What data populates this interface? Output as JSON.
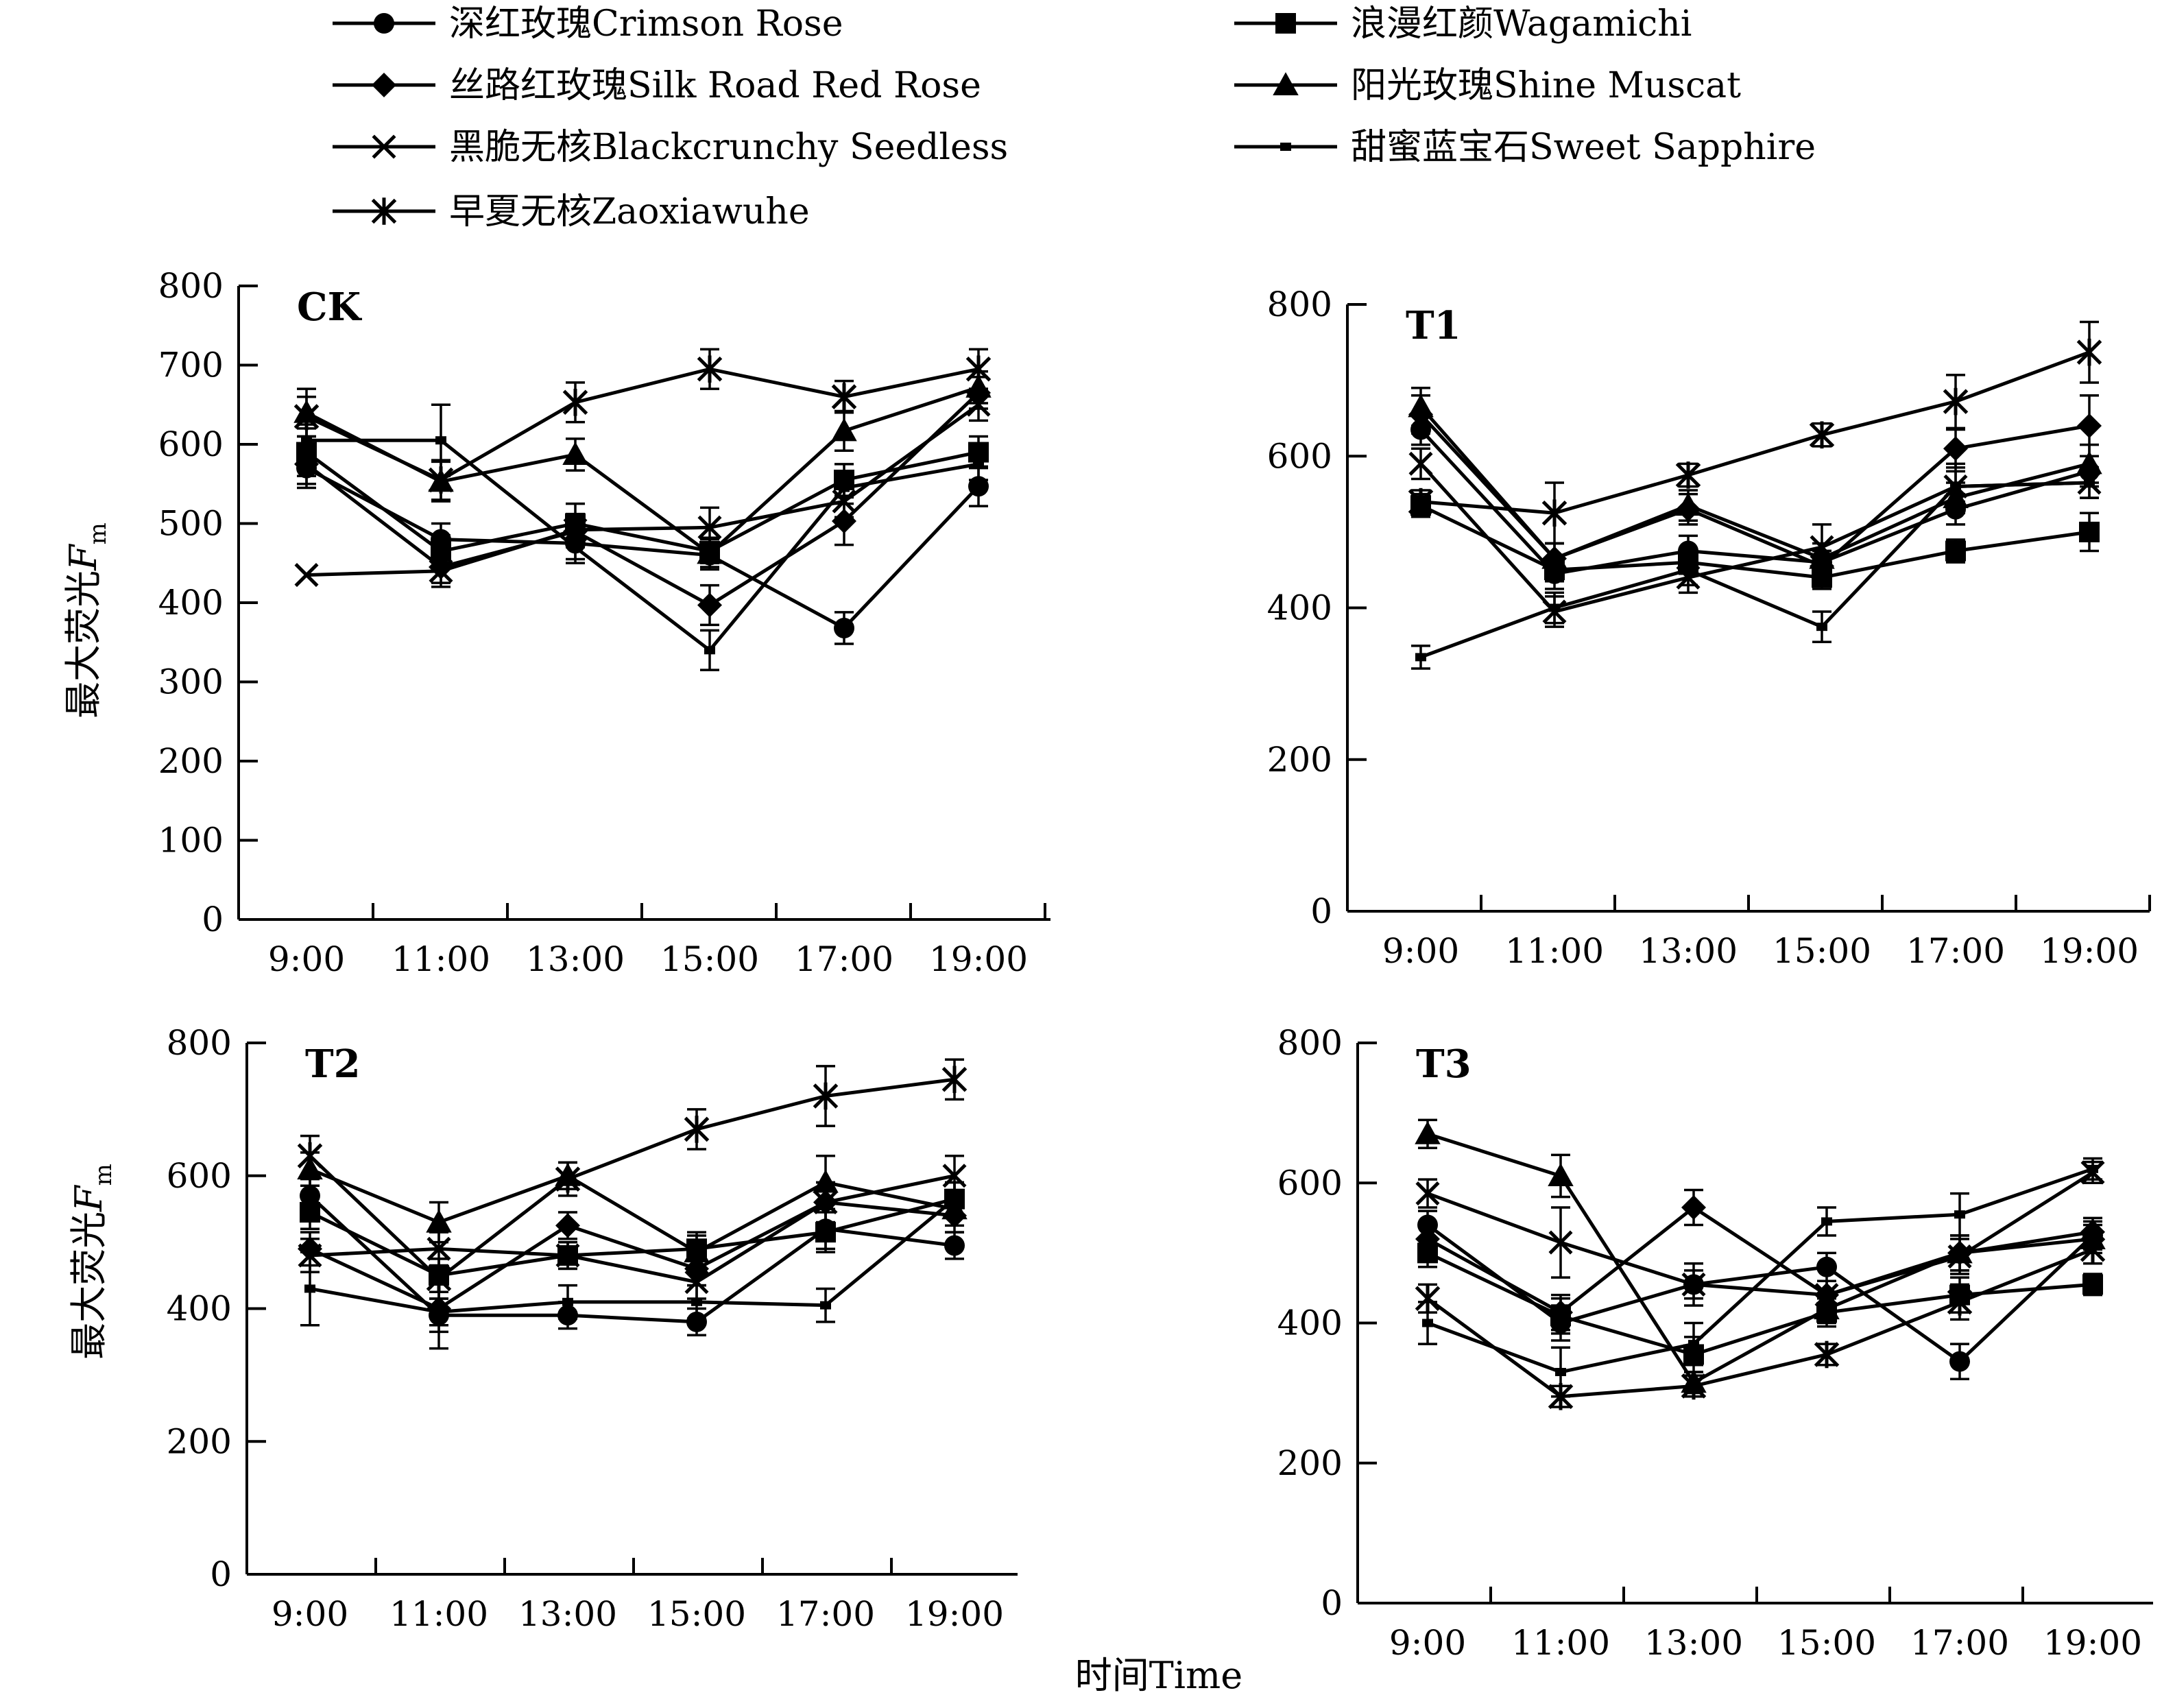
{
  "figure": {
    "ylabel_main": "最大荧光",
    "ylabel_var": "F",
    "ylabel_sub": "m",
    "xlabel": "时间Time"
  },
  "legend": [
    {
      "name": "深红玫瑰Crimson Rose",
      "marker": "circle"
    },
    {
      "name": "浪漫红颜Wagamichi",
      "marker": "square"
    },
    {
      "name": "丝路红玫瑰Silk Road Red Rose",
      "marker": "diamond"
    },
    {
      "name": "阳光玫瑰Shine Muscat",
      "marker": "triangle"
    },
    {
      "name": "黑脆无核Blackcrunchy Seedless",
      "marker": "x"
    },
    {
      "name": "甜蜜蓝宝石Sweet Sapphire",
      "marker": "dash"
    },
    {
      "name": "早夏无核Zaoxiawuhe",
      "marker": "star"
    }
  ],
  "chart_data": [
    {
      "type": "line",
      "title": "CK",
      "categories": [
        "9:00",
        "11:00",
        "13:00",
        "15:00",
        "17:00",
        "19:00"
      ],
      "ylim": [
        0,
        800
      ],
      "yticks": [
        0,
        100,
        200,
        300,
        400,
        500,
        600,
        700,
        800
      ],
      "series": [
        {
          "name": "深红玫瑰Crimson Rose",
          "values": [
            570,
            480,
            475,
            460,
            368,
            547
          ],
          "err": [
            25,
            20,
            20,
            15,
            20,
            25
          ]
        },
        {
          "name": "浪漫红颜Wagamichi",
          "values": [
            590,
            465,
            500,
            465,
            555,
            590
          ],
          "err": [
            30,
            20,
            25,
            15,
            20,
            20
          ]
        },
        {
          "name": "丝路红玫瑰Silk Road Red Rose",
          "values": [
            575,
            445,
            490,
            397,
            503,
            665
          ],
          "err": [
            25,
            20,
            20,
            25,
            30,
            20
          ]
        },
        {
          "name": "阳光玫瑰Shine Muscat",
          "values": [
            640,
            553,
            587,
            462,
            617,
            672
          ],
          "err": [
            30,
            25,
            20,
            20,
            25,
            20
          ]
        },
        {
          "name": "黑脆无核Blackcrunchy Seedless",
          "values": [
            435,
            440,
            492,
            495,
            528,
            650
          ],
          "err": [
            0,
            20,
            20,
            25,
            20,
            20
          ]
        },
        {
          "name": "甜蜜蓝宝石Sweet Sapphire",
          "values": [
            605,
            605,
            470,
            340,
            545,
            575
          ],
          "err": [
            20,
            45,
            20,
            25,
            20,
            20
          ]
        },
        {
          "name": "早夏无核Zaoxiawuhe",
          "values": [
            635,
            555,
            653,
            695,
            660,
            695
          ],
          "err": [
            25,
            25,
            25,
            25,
            20,
            25
          ]
        }
      ]
    },
    {
      "type": "line",
      "title": "T1",
      "categories": [
        "9:00",
        "11:00",
        "13:00",
        "15:00",
        "17:00",
        "19:00"
      ],
      "ylim": [
        0,
        800
      ],
      "yticks": [
        0,
        200,
        400,
        600,
        800
      ],
      "series": [
        {
          "name": "深红玫瑰Crimson Rose",
          "values": [
            635,
            445,
            475,
            460,
            530,
            580
          ],
          "err": [
            20,
            20,
            20,
            15,
            20,
            20
          ]
        },
        {
          "name": "浪漫红颜Wagamichi",
          "values": [
            535,
            450,
            460,
            440,
            475,
            500
          ],
          "err": [
            15,
            15,
            15,
            15,
            15,
            25
          ]
        },
        {
          "name": "丝路红玫瑰Silk Road Red Rose",
          "values": [
            655,
            465,
            530,
            455,
            610,
            640
          ],
          "err": [
            25,
            20,
            20,
            20,
            25,
            40
          ]
        },
        {
          "name": "阳光玫瑰Shine Muscat",
          "values": [
            665,
            465,
            535,
            465,
            545,
            590
          ],
          "err": [
            25,
            20,
            20,
            20,
            20,
            25
          ]
        },
        {
          "name": "黑脆无核Blackcrunchy Seedless",
          "values": [
            590,
            395,
            440,
            480,
            560,
            565
          ],
          "err": [
            20,
            20,
            20,
            30,
            30,
            20
          ]
        },
        {
          "name": "甜蜜蓝宝石Sweet Sapphire",
          "values": [
            335,
            400,
            450,
            375,
            560,
            565
          ],
          "err": [
            15,
            20,
            20,
            20,
            20,
            20
          ]
        },
        {
          "name": "早夏无核Zaoxiawuhe",
          "values": [
            540,
            525,
            575,
            628,
            672,
            737
          ],
          "err": [
            15,
            40,
            15,
            15,
            35,
            40
          ]
        }
      ]
    },
    {
      "type": "line",
      "title": "T2",
      "categories": [
        "9:00",
        "11:00",
        "13:00",
        "15:00",
        "17:00",
        "19:00"
      ],
      "ylim": [
        0,
        800
      ],
      "yticks": [
        0,
        200,
        400,
        600,
        800
      ],
      "series": [
        {
          "name": "深红玫瑰Crimson Rose",
          "values": [
            570,
            390,
            390,
            380,
            520,
            495
          ],
          "err": [
            25,
            25,
            20,
            20,
            30,
            20
          ]
        },
        {
          "name": "浪漫红颜Wagamichi",
          "values": [
            545,
            450,
            480,
            490,
            515,
            565
          ],
          "err": [
            25,
            25,
            20,
            25,
            30,
            25
          ]
        },
        {
          "name": "丝路红玫瑰Silk Road Red Rose",
          "values": [
            490,
            400,
            525,
            460,
            560,
            540
          ],
          "err": [
            25,
            25,
            20,
            25,
            30,
            25
          ]
        },
        {
          "name": "阳光玫瑰Shine Muscat",
          "values": [
            610,
            530,
            600,
            485,
            590,
            550
          ],
          "err": [
            25,
            30,
            20,
            25,
            40,
            25
          ]
        },
        {
          "name": "黑脆无核Blackcrunchy Seedless",
          "values": [
            480,
            490,
            480,
            440,
            560,
            600
          ],
          "err": [
            25,
            25,
            20,
            25,
            30,
            30
          ]
        },
        {
          "name": "甜蜜蓝宝石Sweet Sapphire",
          "values": [
            430,
            395,
            410,
            410,
            405,
            565
          ],
          "err": [
            55,
            55,
            25,
            25,
            25,
            25
          ]
        },
        {
          "name": "早夏无核Zaoxiawuhe",
          "values": [
            630,
            445,
            595,
            670,
            720,
            745
          ],
          "err": [
            30,
            30,
            25,
            30,
            45,
            30
          ]
        }
      ]
    },
    {
      "type": "line",
      "title": "T3",
      "categories": [
        "9:00",
        "11:00",
        "13:00",
        "15:00",
        "17:00",
        "19:00"
      ],
      "ylim": [
        0,
        800
      ],
      "yticks": [
        0,
        200,
        400,
        600,
        800
      ],
      "series": [
        {
          "name": "深红玫瑰Crimson Rose",
          "values": [
            540,
            400,
            455,
            480,
            345,
            525
          ],
          "err": [
            20,
            25,
            20,
            20,
            25,
            20
          ]
        },
        {
          "name": "浪漫红颜Wagamichi",
          "values": [
            500,
            410,
            355,
            415,
            440,
            455
          ],
          "err": [
            20,
            25,
            25,
            20,
            25,
            15
          ]
        },
        {
          "name": "丝路红玫瑰Silk Road Red Rose",
          "values": [
            520,
            415,
            565,
            440,
            500,
            530
          ],
          "err": [
            20,
            25,
            25,
            20,
            25,
            20
          ]
        },
        {
          "name": "阳光玫瑰Shine Muscat",
          "values": [
            670,
            610,
            315,
            420,
            500,
            520
          ],
          "err": [
            20,
            30,
            15,
            20,
            25,
            20
          ]
        },
        {
          "name": "黑脆无核Blackcrunchy Seedless",
          "values": [
            585,
            515,
            455,
            440,
            495,
            615
          ],
          "err": [
            20,
            50,
            30,
            20,
            25,
            15
          ]
        },
        {
          "name": "甜蜜蓝宝石Sweet Sapphire",
          "values": [
            400,
            330,
            370,
            545,
            555,
            620
          ],
          "err": [
            30,
            35,
            30,
            20,
            30,
            15
          ]
        },
        {
          "name": "早夏无核Zaoxiawuhe",
          "values": [
            435,
            295,
            310,
            355,
            430,
            505
          ],
          "err": [
            20,
            15,
            15,
            15,
            25,
            20
          ]
        }
      ]
    }
  ]
}
